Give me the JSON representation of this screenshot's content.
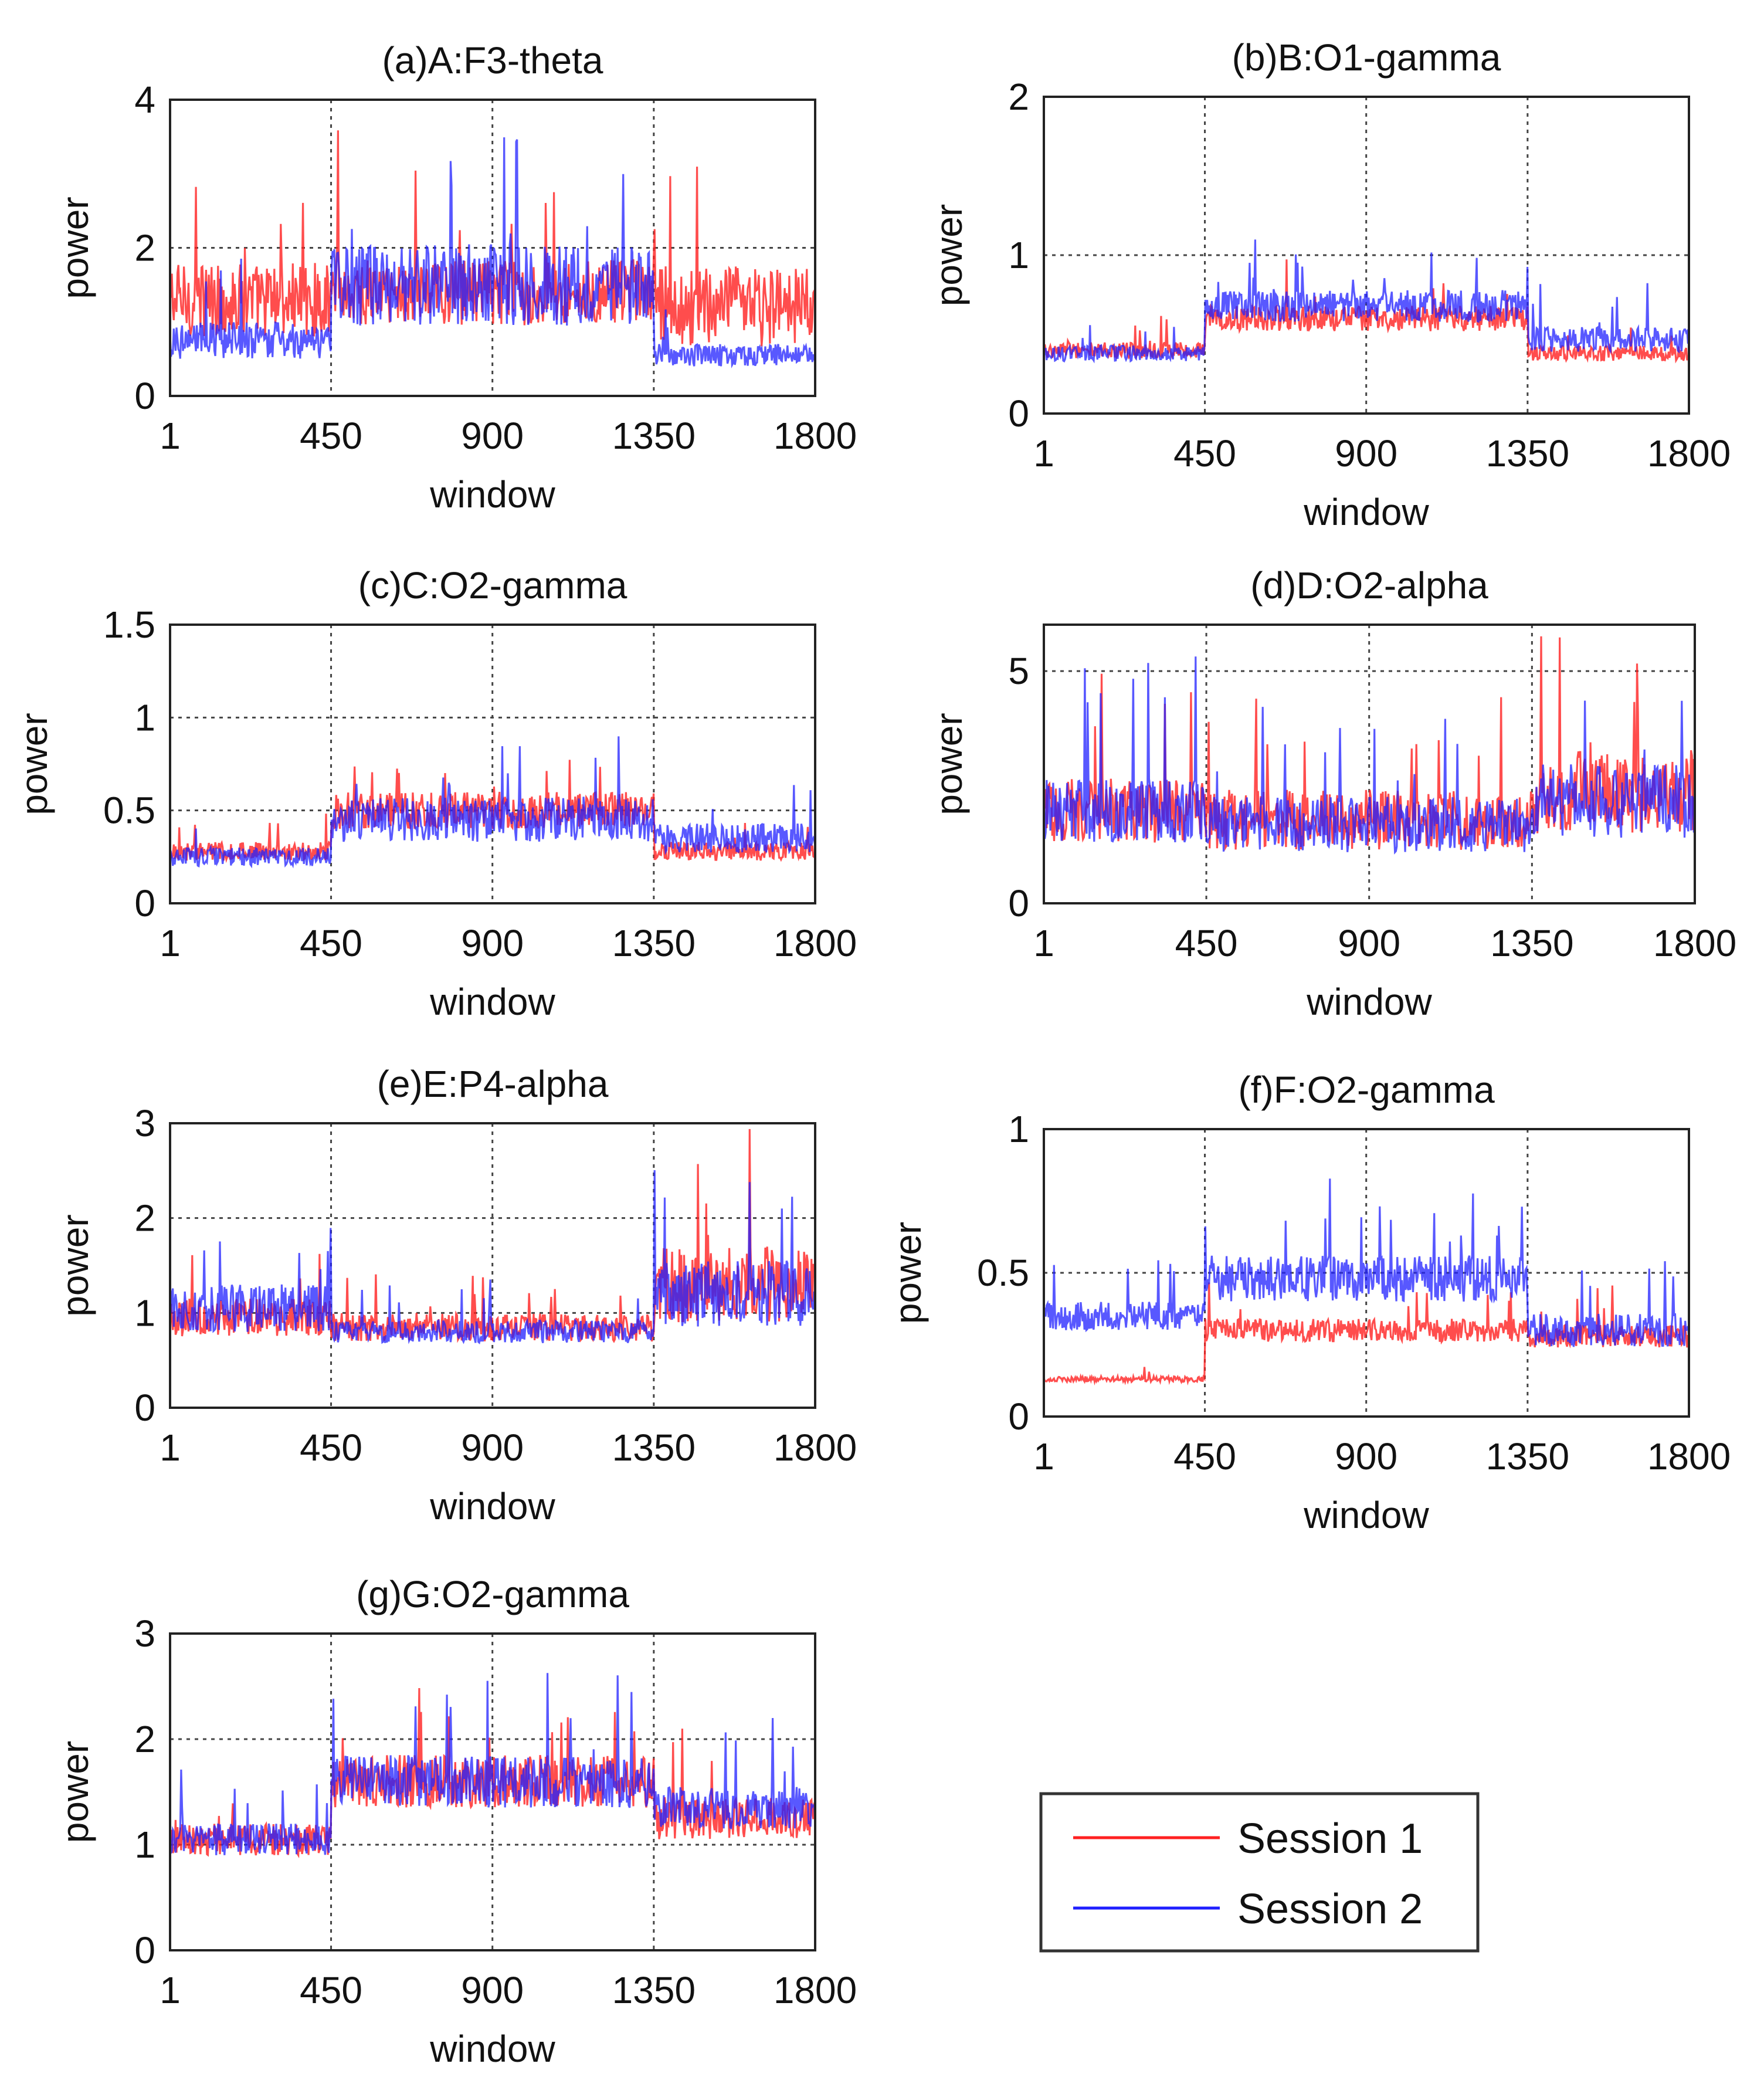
{
  "legend": {
    "entries": [
      {
        "label": "Session 1",
        "color": "#ff2020"
      },
      {
        "label": "Session 2",
        "color": "#2020ff"
      }
    ],
    "placement": "bottom-right"
  },
  "chart_data": [
    {
      "id": "a",
      "type": "line",
      "title": "(a)A:F3-theta",
      "xlabel": "window",
      "ylabel": "power",
      "xlim": [
        1,
        1800
      ],
      "ylim": [
        0,
        4
      ],
      "xticks": [
        1,
        450,
        900,
        1350,
        1800
      ],
      "yticks": [
        0,
        2,
        4
      ],
      "ytick_labels": [
        "0",
        "2",
        "4"
      ],
      "grid": true,
      "segment_boundaries": [
        450,
        1350
      ],
      "series": [
        {
          "name": "Session 1",
          "color": "#ff2020",
          "segment_levels": [
            1.3,
            1.4,
            1.2
          ],
          "spread": [
            0.5,
            0.45,
            0.55
          ]
        },
        {
          "name": "Session 2",
          "color": "#2020ff",
          "segment_levels": [
            0.75,
            1.5,
            0.55
          ],
          "spread": [
            0.25,
            0.55,
            0.15
          ]
        }
      ]
    },
    {
      "id": "b",
      "type": "line",
      "title": "(b)B:O1-gamma",
      "xlabel": "window",
      "ylabel": "power",
      "xlim": [
        1,
        1800
      ],
      "ylim": [
        0,
        2
      ],
      "xticks": [
        1,
        450,
        900,
        1350,
        1800
      ],
      "yticks": [
        0,
        1,
        2
      ],
      "ytick_labels": [
        "0",
        "1",
        "2"
      ],
      "grid": true,
      "segment_boundaries": [
        450,
        1350
      ],
      "series": [
        {
          "name": "Session 1",
          "color": "#ff2020",
          "segment_levels": [
            0.4,
            0.6,
            0.38
          ],
          "spread": [
            0.05,
            0.08,
            0.05
          ]
        },
        {
          "name": "Session 2",
          "color": "#2020ff",
          "segment_levels": [
            0.38,
            0.68,
            0.47
          ],
          "spread": [
            0.05,
            0.1,
            0.08
          ]
        }
      ]
    },
    {
      "id": "c",
      "type": "line",
      "title": "(c)C:O2-gamma",
      "xlabel": "window",
      "ylabel": "power",
      "xlim": [
        1,
        1800
      ],
      "ylim": [
        0,
        1.5
      ],
      "xticks": [
        1,
        450,
        900,
        1350,
        1800
      ],
      "yticks": [
        0,
        0.5,
        1,
        1.5
      ],
      "ytick_labels": [
        "0",
        "0.5",
        "1",
        "1.5"
      ],
      "grid": true,
      "segment_boundaries": [
        450,
        1350
      ],
      "series": [
        {
          "name": "Session 1",
          "color": "#ff2020",
          "segment_levels": [
            0.28,
            0.5,
            0.28
          ],
          "spread": [
            0.05,
            0.1,
            0.05
          ]
        },
        {
          "name": "Session 2",
          "color": "#2020ff",
          "segment_levels": [
            0.25,
            0.45,
            0.35
          ],
          "spread": [
            0.05,
            0.12,
            0.08
          ]
        }
      ]
    },
    {
      "id": "d",
      "type": "line",
      "title": "(d)D:O2-alpha",
      "xlabel": "window",
      "ylabel": "power",
      "xlim": [
        1,
        1800
      ],
      "ylim": [
        0,
        6
      ],
      "xticks": [
        1,
        450,
        900,
        1350,
        1800
      ],
      "yticks": [
        0,
        5
      ],
      "ytick_labels": [
        "0",
        "5"
      ],
      "grid": true,
      "segment_boundaries": [
        450,
        1350
      ],
      "series": [
        {
          "name": "Session 1",
          "color": "#ff2020",
          "segment_levels": [
            2.0,
            1.8,
            2.4
          ],
          "spread": [
            0.7,
            0.65,
            0.9
          ]
        },
        {
          "name": "Session 2",
          "color": "#2020ff",
          "segment_levels": [
            2.0,
            1.7,
            2.2
          ],
          "spread": [
            0.7,
            0.6,
            0.8
          ]
        }
      ]
    },
    {
      "id": "e",
      "type": "line",
      "title": "(e)E:P4-alpha",
      "xlabel": "window",
      "ylabel": "power",
      "xlim": [
        1,
        1800
      ],
      "ylim": [
        0,
        3
      ],
      "xticks": [
        1,
        450,
        900,
        1350,
        1800
      ],
      "yticks": [
        0,
        1,
        2,
        3
      ],
      "ytick_labels": [
        "0",
        "1",
        "2",
        "3"
      ],
      "grid": true,
      "segment_boundaries": [
        450,
        1350
      ],
      "series": [
        {
          "name": "Session 1",
          "color": "#ff2020",
          "segment_levels": [
            0.95,
            0.85,
            1.3
          ],
          "spread": [
            0.2,
            0.15,
            0.4
          ]
        },
        {
          "name": "Session 2",
          "color": "#2020ff",
          "segment_levels": [
            1.05,
            0.8,
            1.2
          ],
          "spread": [
            0.25,
            0.12,
            0.35
          ]
        }
      ]
    },
    {
      "id": "f",
      "type": "line",
      "title": "(f)F:O2-gamma",
      "xlabel": "window",
      "ylabel": "power",
      "xlim": [
        1,
        1800
      ],
      "ylim": [
        0,
        1
      ],
      "xticks": [
        1,
        450,
        900,
        1350,
        1800
      ],
      "yticks": [
        0,
        0.5,
        1
      ],
      "ytick_labels": [
        "0",
        "0.5",
        "1"
      ],
      "grid": true,
      "segment_boundaries": [
        450,
        1350
      ],
      "series": [
        {
          "name": "Session 1",
          "color": "#ff2020",
          "segment_levels": [
            0.13,
            0.3,
            0.28
          ],
          "spread": [
            0.01,
            0.04,
            0.04
          ]
        },
        {
          "name": "Session 2",
          "color": "#2020ff",
          "segment_levels": [
            0.35,
            0.48,
            0.3
          ],
          "spread": [
            0.05,
            0.08,
            0.06
          ]
        }
      ]
    },
    {
      "id": "g",
      "type": "line",
      "title": "(g)G:O2-gamma",
      "xlabel": "window",
      "ylabel": "power",
      "xlim": [
        1,
        1800
      ],
      "ylim": [
        0,
        3
      ],
      "xticks": [
        1,
        450,
        900,
        1350,
        1800
      ],
      "yticks": [
        0,
        1,
        2,
        3
      ],
      "ytick_labels": [
        "0",
        "1",
        "2",
        "3"
      ],
      "grid": true,
      "segment_boundaries": [
        450,
        1350
      ],
      "series": [
        {
          "name": "Session 1",
          "color": "#ff2020",
          "segment_levels": [
            1.05,
            1.6,
            1.25
          ],
          "spread": [
            0.15,
            0.25,
            0.2
          ]
        },
        {
          "name": "Session 2",
          "color": "#2020ff",
          "segment_levels": [
            1.05,
            1.6,
            1.35
          ],
          "spread": [
            0.15,
            0.25,
            0.2
          ]
        }
      ]
    }
  ]
}
